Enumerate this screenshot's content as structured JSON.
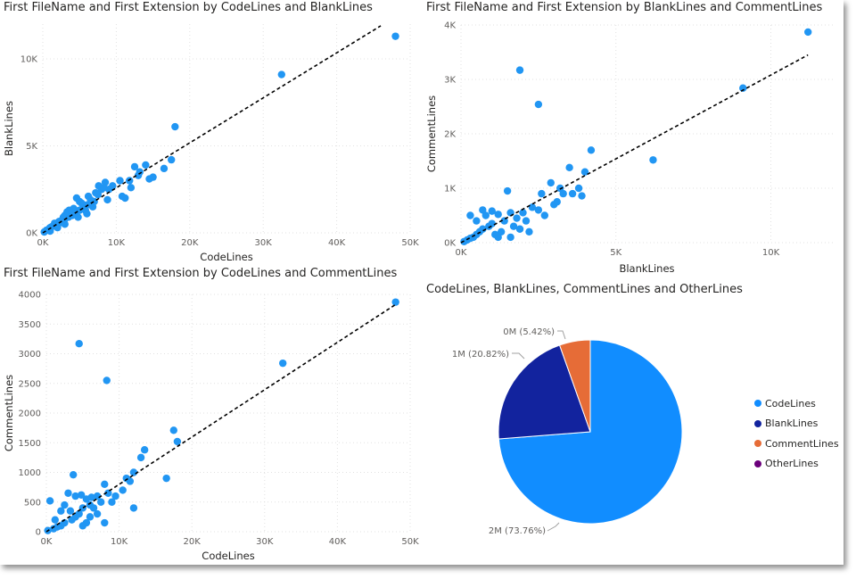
{
  "colors": {
    "point": "#2196f3",
    "trend": "#000000",
    "grid": "#e1e1e1",
    "CodeLines": "#118dff",
    "BlankLines": "#12239e",
    "CommentLines": "#e66c37",
    "OtherLines": "#6b007b"
  },
  "panels": {
    "p1": {
      "title": "First FileName and First Extension by CodeLines and BlankLines"
    },
    "p2": {
      "title": "First FileName and First Extension by BlankLines and CommentLines"
    },
    "p3": {
      "title": "First FileName and First Extension by CodeLines and CommentLines"
    },
    "p4": {
      "title": "CodeLines, BlankLines, CommentLines and OtherLines"
    }
  },
  "chart_data": [
    {
      "id": "p1",
      "type": "scatter",
      "title": "First FileName and First Extension by CodeLines and BlankLines",
      "xlabel": "CodeLines",
      "ylabel": "BlankLines",
      "xlim": [
        0,
        50000
      ],
      "ylim": [
        0,
        12000
      ],
      "xticks": [
        0,
        10000,
        20000,
        30000,
        40000,
        50000
      ],
      "xtick_labels": [
        "0K",
        "10K",
        "20K",
        "30K",
        "40K",
        "50K"
      ],
      "yticks": [
        0,
        5000,
        10000
      ],
      "ytick_labels": [
        "0K",
        "5K",
        "10K"
      ],
      "grid": true,
      "trendline": [
        [
          0,
          0
        ],
        [
          46000,
          11900
        ]
      ],
      "points": [
        [
          48000,
          11300
        ],
        [
          32500,
          9100
        ],
        [
          18000,
          6100
        ],
        [
          17500,
          4200
        ],
        [
          16500,
          3700
        ],
        [
          15000,
          3200
        ],
        [
          14000,
          3900
        ],
        [
          13200,
          3500
        ],
        [
          12500,
          3800
        ],
        [
          11800,
          3000
        ],
        [
          12000,
          2600
        ],
        [
          10500,
          3000
        ],
        [
          9500,
          2700
        ],
        [
          8500,
          2900
        ],
        [
          8000,
          2500
        ],
        [
          7500,
          2200
        ],
        [
          7000,
          1800
        ],
        [
          6500,
          1900
        ],
        [
          6000,
          1600
        ],
        [
          5500,
          1500
        ],
        [
          5000,
          1300
        ],
        [
          4500,
          1200
        ],
        [
          4000,
          1000
        ],
        [
          3500,
          900
        ],
        [
          3000,
          800
        ],
        [
          2500,
          600
        ],
        [
          2000,
          500
        ],
        [
          1500,
          400
        ],
        [
          1000,
          300
        ],
        [
          500,
          150
        ],
        [
          200,
          50
        ],
        [
          3000,
          1000
        ],
        [
          2500,
          700
        ],
        [
          5000,
          1800
        ],
        [
          4200,
          1400
        ],
        [
          6200,
          2100
        ],
        [
          7200,
          2300
        ],
        [
          9000,
          2500
        ],
        [
          8800,
          1900
        ],
        [
          3800,
          1100
        ],
        [
          2200,
          650
        ],
        [
          1800,
          450
        ],
        [
          1200,
          350
        ],
        [
          800,
          200
        ],
        [
          4800,
          900
        ],
        [
          6800,
          1500
        ],
        [
          10800,
          2100
        ],
        [
          11200,
          2000
        ],
        [
          5800,
          1300
        ],
        [
          3300,
          1200
        ],
        [
          4600,
          2000
        ],
        [
          2800,
          900
        ],
        [
          3600,
          1300
        ],
        [
          1600,
          550
        ],
        [
          900,
          250
        ],
        [
          5300,
          1700
        ],
        [
          7600,
          2700
        ],
        [
          8300,
          2600
        ],
        [
          13000,
          3300
        ],
        [
          14500,
          3100
        ],
        [
          6000,
          1100
        ],
        [
          3000,
          500
        ],
        [
          2000,
          300
        ],
        [
          1000,
          100
        ]
      ]
    },
    {
      "id": "p2",
      "type": "scatter",
      "title": "First FileName and First Extension by BlankLines and CommentLines",
      "xlabel": "BlankLines",
      "ylabel": "CommentLines",
      "xlim": [
        0,
        12000
      ],
      "ylim": [
        0,
        4000
      ],
      "xticks": [
        0,
        5000,
        10000
      ],
      "xtick_labels": [
        "0K",
        "5K",
        "10K"
      ],
      "yticks": [
        0,
        1000,
        2000,
        3000,
        4000
      ],
      "ytick_labels": [
        "0K",
        "1K",
        "2K",
        "3K",
        "4K"
      ],
      "grid": true,
      "trendline": [
        [
          0,
          0
        ],
        [
          11200,
          3450
        ]
      ],
      "points": [
        [
          11200,
          3870
        ],
        [
          9100,
          2840
        ],
        [
          1900,
          3170
        ],
        [
          2500,
          2540
        ],
        [
          4200,
          1700
        ],
        [
          6200,
          1520
        ],
        [
          4000,
          1300
        ],
        [
          3900,
          860
        ],
        [
          3800,
          1000
        ],
        [
          3500,
          1380
        ],
        [
          3200,
          1000
        ],
        [
          3000,
          700
        ],
        [
          2900,
          1100
        ],
        [
          2600,
          900
        ],
        [
          2500,
          600
        ],
        [
          2300,
          650
        ],
        [
          2000,
          550
        ],
        [
          1800,
          450
        ],
        [
          1600,
          550
        ],
        [
          1500,
          950
        ],
        [
          1400,
          400
        ],
        [
          1200,
          520
        ],
        [
          1000,
          350
        ],
        [
          900,
          300
        ],
        [
          800,
          500
        ],
        [
          700,
          250
        ],
        [
          600,
          200
        ],
        [
          500,
          150
        ],
        [
          400,
          100
        ],
        [
          300,
          80
        ],
        [
          200,
          50
        ],
        [
          100,
          20
        ],
        [
          1300,
          200
        ],
        [
          1100,
          150
        ],
        [
          1700,
          300
        ],
        [
          2100,
          400
        ],
        [
          2700,
          500
        ],
        [
          3100,
          750
        ],
        [
          3300,
          900
        ],
        [
          1900,
          250
        ],
        [
          700,
          600
        ],
        [
          1200,
          100
        ],
        [
          2200,
          200
        ],
        [
          1600,
          100
        ],
        [
          1000,
          580
        ],
        [
          500,
          400
        ],
        [
          300,
          500
        ],
        [
          3600,
          900
        ]
      ]
    },
    {
      "id": "p3",
      "type": "scatter",
      "title": "First FileName and First Extension by CodeLines and CommentLines",
      "xlabel": "CodeLines",
      "ylabel": "CommentLines",
      "xlim": [
        0,
        50000
      ],
      "ylim": [
        0,
        4000
      ],
      "xticks": [
        0,
        10000,
        20000,
        30000,
        40000,
        50000
      ],
      "xtick_labels": [
        "0K",
        "10K",
        "20K",
        "30K",
        "40K",
        "50K"
      ],
      "yticks": [
        0,
        500,
        1000,
        1500,
        2000,
        2500,
        3000,
        3500,
        4000
      ],
      "ytick_labels": [
        "0",
        "500",
        "1000",
        "1500",
        "2000",
        "2500",
        "3000",
        "3500",
        "4000"
      ],
      "grid": true,
      "trendline": [
        [
          0,
          0
        ],
        [
          48000,
          3830
        ]
      ],
      "points": [
        [
          48000,
          3870
        ],
        [
          32500,
          2840
        ],
        [
          4500,
          3170
        ],
        [
          8300,
          2550
        ],
        [
          18000,
          1520
        ],
        [
          17500,
          1710
        ],
        [
          16500,
          900
        ],
        [
          13500,
          1380
        ],
        [
          13000,
          1250
        ],
        [
          12000,
          1000
        ],
        [
          11500,
          850
        ],
        [
          11000,
          900
        ],
        [
          10500,
          700
        ],
        [
          9500,
          600
        ],
        [
          8500,
          650
        ],
        [
          8000,
          800
        ],
        [
          7500,
          500
        ],
        [
          7000,
          600
        ],
        [
          6500,
          400
        ],
        [
          6000,
          450
        ],
        [
          5500,
          550
        ],
        [
          5000,
          400
        ],
        [
          4500,
          300
        ],
        [
          4000,
          250
        ],
        [
          3500,
          200
        ],
        [
          3000,
          650
        ],
        [
          2500,
          150
        ],
        [
          2000,
          100
        ],
        [
          1500,
          80
        ],
        [
          1000,
          50
        ],
        [
          500,
          520
        ],
        [
          200,
          20
        ],
        [
          3700,
          960
        ],
        [
          5500,
          150
        ],
        [
          6000,
          250
        ],
        [
          8000,
          150
        ],
        [
          12000,
          400
        ],
        [
          4000,
          600
        ],
        [
          5000,
          100
        ],
        [
          2000,
          350
        ],
        [
          1200,
          200
        ],
        [
          7000,
          300
        ],
        [
          9000,
          500
        ],
        [
          2500,
          450
        ],
        [
          3300,
          350
        ],
        [
          4800,
          620
        ],
        [
          6200,
          580
        ]
      ]
    },
    {
      "id": "p4",
      "type": "pie",
      "title": "CodeLines, BlankLines, CommentLines and OtherLines",
      "categories": [
        "CodeLines",
        "BlankLines",
        "CommentLines",
        "OtherLines"
      ],
      "values": [
        73.76,
        20.82,
        5.42,
        0
      ],
      "labels": [
        "2M (73.76%)",
        "1M (20.82%)",
        "0M (5.42%)",
        ""
      ],
      "legend": "right"
    }
  ]
}
